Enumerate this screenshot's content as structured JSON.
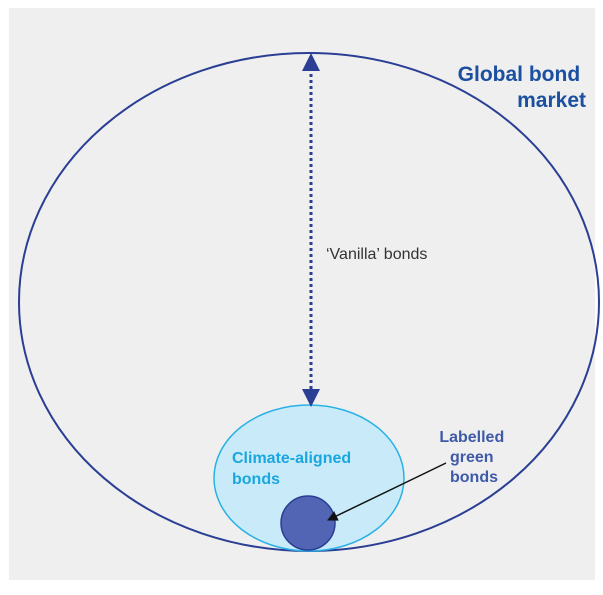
{
  "diagram": {
    "outer": {
      "label_lines": [
        "Global bond",
        "market"
      ],
      "stroke": "#2a3f94"
    },
    "vanilla": {
      "label": "‘Vanilla’ bonds",
      "arrow_color": "#2a3f94"
    },
    "climate": {
      "label_lines": [
        "Climate-aligned",
        "bonds"
      ],
      "fill": "#c9ebf9",
      "stroke": "#29b1e6"
    },
    "green": {
      "label_lines": [
        "Labelled",
        "green",
        "bonds"
      ],
      "fill": "#5265b4",
      "stroke": "#2a3f94"
    },
    "background": "#efefef"
  }
}
